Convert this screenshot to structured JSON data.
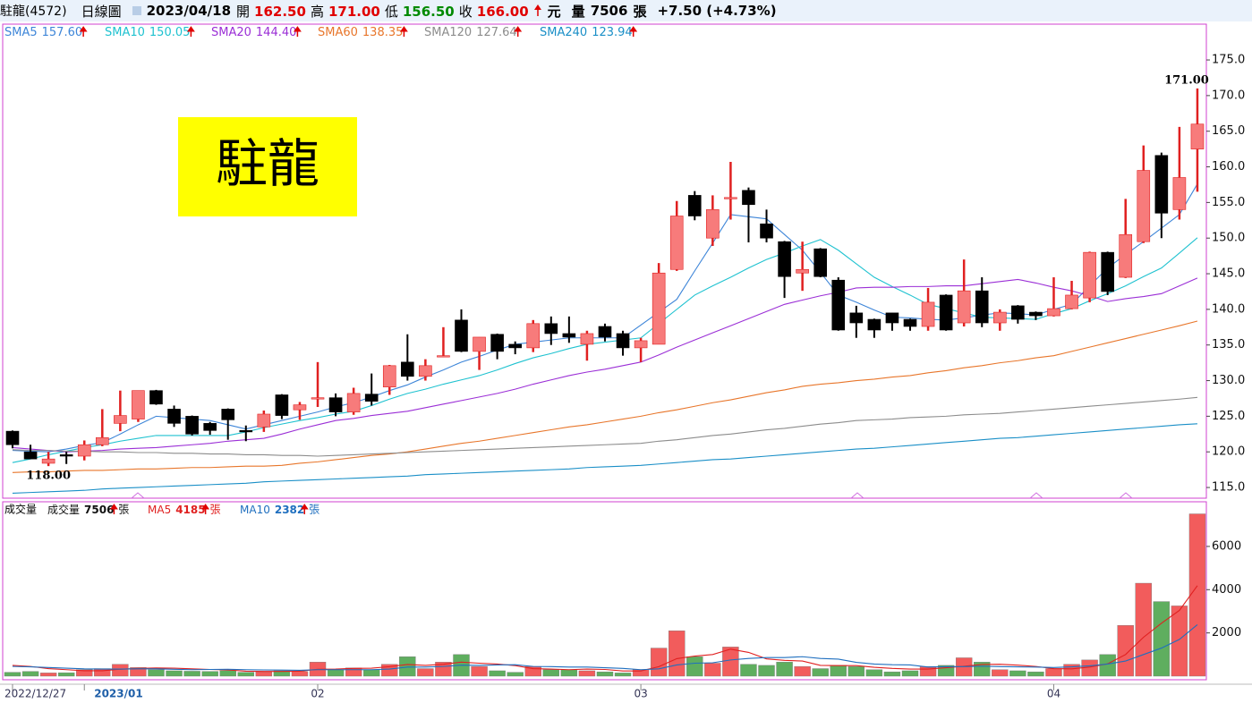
{
  "header": {
    "name": "駐龍(4572)",
    "period": "日線圖",
    "date": "2023/04/18",
    "items": [
      {
        "label": "開",
        "value": "162.50",
        "color": "#e00000"
      },
      {
        "label": "高",
        "value": "171.00",
        "color": "#e00000"
      },
      {
        "label": "低",
        "value": "156.50",
        "color": "#008a00"
      },
      {
        "label": "收",
        "value": "166.00",
        "color": "#e00000"
      }
    ],
    "unit": "元",
    "volume_label": "量",
    "volume": "7506",
    "volume_unit": "張",
    "change": "+7.50 (+4.73%)"
  },
  "chart_data": [
    {
      "type": "candlestick",
      "badge": "駐龍",
      "categories": [
        "2022/12/27",
        null,
        null,
        null,
        "2023/01",
        null,
        null,
        null,
        null,
        null,
        null,
        null,
        null,
        null,
        null,
        null,
        null,
        "02",
        null,
        null,
        null,
        null,
        null,
        null,
        null,
        null,
        null,
        null,
        null,
        null,
        null,
        null,
        null,
        null,
        null,
        "03",
        null,
        null,
        null,
        null,
        null,
        null,
        null,
        null,
        null,
        null,
        null,
        null,
        null,
        null,
        null,
        null,
        null,
        null,
        null,
        null,
        null,
        null,
        "04",
        null,
        null,
        null,
        null,
        null,
        null,
        null,
        null
      ],
      "open": [
        122.9,
        120.0,
        118.4,
        119.6,
        119.4,
        121.0,
        124.0,
        124.6,
        128.6,
        126.0,
        125.0,
        124.0,
        126.0,
        123.0,
        123.5,
        128.0,
        125.9,
        127.5,
        127.6,
        125.6,
        128.1,
        129.1,
        132.6,
        130.6,
        133.4,
        138.5,
        134.1,
        136.5,
        135.1,
        134.6,
        138.0,
        136.6,
        135.1,
        137.6,
        136.6,
        134.6,
        135.1,
        145.6,
        156.0,
        150.0,
        155.6,
        156.7,
        152.0,
        149.5,
        145.1,
        148.5,
        144.1,
        139.5,
        138.6,
        139.5,
        138.6,
        137.6,
        142.0,
        138.1,
        142.6,
        138.1,
        140.5,
        139.6,
        139.1,
        140.1,
        141.6,
        148.0,
        144.5,
        149.5,
        161.6,
        154.0,
        162.5
      ],
      "high": [
        123.0,
        121.0,
        120.0,
        120.0,
        121.6,
        126.0,
        128.6,
        128.6,
        128.7,
        126.5,
        125.1,
        124.2,
        126.1,
        123.7,
        125.8,
        128.1,
        127.0,
        132.6,
        128.2,
        129.0,
        131.0,
        132.2,
        136.5,
        133.0,
        137.5,
        140.0,
        136.1,
        136.6,
        135.5,
        138.5,
        139.0,
        139.0,
        137.0,
        138.0,
        137.0,
        136.0,
        146.5,
        155.2,
        156.6,
        156.0,
        160.7,
        157.1,
        154.0,
        149.6,
        149.5,
        148.6,
        144.5,
        140.5,
        138.7,
        139.5,
        138.7,
        143.0,
        142.1,
        147.0,
        144.5,
        140.0,
        140.6,
        139.7,
        144.5,
        144.0,
        148.1,
        148.1,
        155.5,
        163.0,
        162.0,
        165.6,
        171.0
      ],
      "low": [
        120.5,
        119.0,
        118.0,
        118.3,
        118.8,
        120.8,
        122.9,
        124.2,
        126.6,
        123.5,
        122.3,
        122.4,
        121.7,
        121.5,
        122.8,
        124.6,
        124.5,
        126.3,
        125.0,
        125.2,
        126.5,
        128.0,
        130.0,
        130.0,
        133.3,
        134.0,
        131.5,
        133.0,
        133.7,
        134.0,
        135.0,
        135.3,
        132.8,
        135.5,
        133.5,
        132.6,
        135.1,
        145.4,
        152.5,
        148.9,
        152.6,
        149.4,
        149.4,
        141.6,
        142.6,
        144.5,
        137.0,
        136.0,
        136.0,
        137.0,
        137.0,
        137.0,
        137.0,
        137.6,
        137.5,
        137.0,
        138.0,
        138.5,
        139.0,
        140.0,
        141.0,
        142.0,
        144.4,
        149.3,
        150.0,
        152.6,
        156.5
      ],
      "close": [
        121.0,
        119.0,
        119.0,
        119.4,
        121.0,
        122.0,
        125.1,
        128.6,
        126.7,
        124.0,
        122.5,
        123.0,
        124.5,
        122.8,
        125.3,
        125.1,
        126.6,
        127.6,
        125.6,
        128.2,
        127.1,
        132.1,
        130.6,
        132.1,
        133.5,
        134.1,
        136.1,
        134.1,
        134.6,
        138.0,
        136.6,
        136.1,
        136.6,
        136.1,
        134.6,
        135.6,
        145.1,
        153.1,
        153.1,
        154.0,
        155.7,
        154.7,
        150.0,
        144.6,
        145.6,
        144.6,
        137.1,
        138.1,
        137.1,
        138.1,
        137.6,
        141.0,
        137.1,
        142.6,
        138.1,
        139.6,
        138.6,
        139.1,
        140.1,
        142.0,
        148.0,
        142.5,
        150.5,
        159.5,
        153.5,
        158.5,
        166.0
      ],
      "up_color": "#f77b7b",
      "up_edge": "#e02020",
      "down_color": "#000000",
      "ylim": [
        113.5,
        179.9
      ],
      "yticks": [
        {
          "value": 115,
          "label": "115.0"
        },
        {
          "value": 120,
          "label": "120.0"
        },
        {
          "value": 125,
          "label": "125.0"
        },
        {
          "value": 130,
          "label": "130.0"
        },
        {
          "value": 135,
          "label": "135.0"
        },
        {
          "value": 140,
          "label": "140.0"
        },
        {
          "value": 145,
          "label": "145.0"
        },
        {
          "value": 150,
          "label": "150.0"
        },
        {
          "value": 155,
          "label": "155.0"
        },
        {
          "value": 160,
          "label": "160.0"
        },
        {
          "value": 165,
          "label": "165.0"
        },
        {
          "value": 170,
          "label": "170.0"
        },
        {
          "value": 175,
          "label": "175.0"
        }
      ],
      "annotations": [
        {
          "text": "171.00",
          "index": 66,
          "value": 171.0
        },
        {
          "text": "118.00",
          "index": 2,
          "value": 118.0
        }
      ],
      "lines": [
        {
          "name": "SMA5",
          "current": "157.60",
          "color": "#3d85d8",
          "values": [
            120.2,
            120.1,
            120.0,
            120.4,
            120.9,
            121.3,
            122.5,
            123.8,
            125.0,
            124.8,
            124.6,
            124.4,
            123.8,
            123.2,
            123.8,
            124.4,
            125.0,
            125.6,
            126.3,
            126.9,
            127.7,
            128.6,
            129.4,
            130.5,
            131.5,
            132.6,
            133.4,
            134.3,
            135.1,
            135.4,
            135.7,
            136.0,
            136.0,
            136.0,
            136.0,
            137.8,
            139.6,
            141.4,
            145.4,
            149.3,
            153.3,
            153.0,
            152.7,
            150.5,
            148.3,
            145.2,
            142.0,
            141.0,
            139.9,
            138.9,
            138.8,
            138.6,
            138.5,
            138.8,
            139.2,
            139.5,
            139.4,
            139.2,
            140.0,
            140.7,
            143.3,
            145.8,
            147.7,
            149.5,
            151.4,
            153.3,
            157.6
          ]
        },
        {
          "name": "SMA10",
          "current": "150.05",
          "color": "#1fc2d0",
          "values": [
            118.5,
            119.0,
            119.6,
            120.1,
            120.6,
            121.0,
            121.5,
            121.9,
            122.3,
            122.3,
            122.3,
            122.3,
            122.3,
            122.8,
            123.4,
            123.9,
            124.4,
            124.8,
            125.3,
            125.7,
            126.5,
            127.4,
            128.2,
            128.8,
            129.5,
            130.1,
            130.7,
            131.5,
            132.4,
            133.2,
            133.8,
            134.5,
            135.1,
            135.4,
            135.7,
            136.0,
            138.0,
            140.0,
            142.0,
            143.3,
            144.5,
            145.8,
            147.0,
            147.9,
            148.9,
            149.8,
            148.3,
            146.4,
            144.5,
            143.2,
            142.0,
            140.7,
            140.1,
            139.5,
            138.9,
            138.8,
            138.7,
            138.6,
            139.4,
            140.1,
            141.2,
            142.2,
            143.3,
            144.6,
            145.8,
            147.9,
            150.05
          ]
        },
        {
          "name": "SMA20",
          "current": "144.40",
          "color": "#9b2fd6",
          "values": [
            120.6,
            120.4,
            120.2,
            120.0,
            120.1,
            120.2,
            120.4,
            120.5,
            120.6,
            120.8,
            121.0,
            121.2,
            121.5,
            121.7,
            121.9,
            122.5,
            123.2,
            123.8,
            124.4,
            124.7,
            125.1,
            125.4,
            125.7,
            126.2,
            126.7,
            127.2,
            127.7,
            128.2,
            128.8,
            129.5,
            130.1,
            130.7,
            131.2,
            131.6,
            132.1,
            132.6,
            133.6,
            134.7,
            135.7,
            136.7,
            137.7,
            138.7,
            139.7,
            140.7,
            141.3,
            141.9,
            142.4,
            143.0,
            143.1,
            143.1,
            143.2,
            143.2,
            143.3,
            143.3,
            143.6,
            143.9,
            144.2,
            143.7,
            143.1,
            142.6,
            141.9,
            141.1,
            141.5,
            141.8,
            142.2,
            143.3,
            144.4
          ]
        },
        {
          "name": "SMA60",
          "current": "138.35",
          "color": "#e8762b",
          "values": [
            117.1,
            117.2,
            117.2,
            117.3,
            117.4,
            117.4,
            117.5,
            117.6,
            117.6,
            117.7,
            117.8,
            117.8,
            117.9,
            118.0,
            118.0,
            118.1,
            118.4,
            118.6,
            118.9,
            119.2,
            119.5,
            119.7,
            120.0,
            120.4,
            120.8,
            121.2,
            121.5,
            121.9,
            122.3,
            122.7,
            123.1,
            123.5,
            123.8,
            124.2,
            124.6,
            125.0,
            125.5,
            125.9,
            126.4,
            126.9,
            127.3,
            127.8,
            128.3,
            128.7,
            129.2,
            129.5,
            129.7,
            130.0,
            130.2,
            130.5,
            130.7,
            131.1,
            131.4,
            131.8,
            132.1,
            132.5,
            132.8,
            133.2,
            133.5,
            134.1,
            134.7,
            135.3,
            135.9,
            136.5,
            137.1,
            137.7,
            138.35
          ]
        },
        {
          "name": "SMA120",
          "current": "127.64",
          "color": "#8c8c8c",
          "values": [
            120.3,
            120.2,
            120.2,
            120.1,
            120.1,
            120.0,
            120.0,
            119.9,
            119.9,
            119.8,
            119.8,
            119.7,
            119.7,
            119.6,
            119.6,
            119.5,
            119.5,
            119.4,
            119.5,
            119.6,
            119.7,
            119.8,
            119.9,
            120.0,
            120.1,
            120.2,
            120.3,
            120.4,
            120.5,
            120.6,
            120.7,
            120.8,
            120.9,
            121.0,
            121.1,
            121.2,
            121.5,
            121.7,
            122.0,
            122.3,
            122.5,
            122.8,
            123.1,
            123.3,
            123.6,
            123.9,
            124.1,
            124.4,
            124.5,
            124.6,
            124.8,
            124.9,
            125.0,
            125.2,
            125.3,
            125.4,
            125.6,
            125.8,
            126.0,
            126.2,
            126.4,
            126.6,
            126.8,
            127.0,
            127.2,
            127.4,
            127.64
          ]
        },
        {
          "name": "SMA240",
          "current": "123.94",
          "color": "#1a8fc7",
          "values": [
            114.2,
            114.3,
            114.4,
            114.5,
            114.6,
            114.8,
            114.9,
            115.0,
            115.1,
            115.2,
            115.3,
            115.4,
            115.5,
            115.6,
            115.8,
            115.9,
            116.0,
            116.1,
            116.2,
            116.3,
            116.4,
            116.5,
            116.6,
            116.8,
            116.9,
            117.0,
            117.1,
            117.2,
            117.3,
            117.4,
            117.5,
            117.6,
            117.8,
            117.9,
            118.0,
            118.1,
            118.3,
            118.5,
            118.7,
            118.9,
            119.0,
            119.2,
            119.4,
            119.6,
            119.8,
            120.0,
            120.2,
            120.4,
            120.5,
            120.7,
            120.9,
            121.1,
            121.3,
            121.5,
            121.7,
            121.9,
            122.0,
            122.2,
            122.4,
            122.6,
            122.8,
            123.0,
            123.2,
            123.4,
            123.6,
            123.8,
            123.94
          ]
        }
      ]
    },
    {
      "type": "bar",
      "title": "成交量",
      "unit": "張",
      "up_color": "#f25c5c",
      "down_color": "#5fae5f",
      "series": [
        {
          "name": "成交量",
          "current": "7506",
          "values": [
            180,
            220,
            150,
            160,
            300,
            350,
            550,
            400,
            300,
            250,
            230,
            220,
            260,
            180,
            200,
            250,
            220,
            650,
            300,
            380,
            300,
            550,
            900,
            350,
            650,
            1000,
            450,
            250,
            180,
            450,
            300,
            300,
            250,
            200,
            150,
            300,
            1300,
            2100,
            900,
            600,
            1350,
            550,
            500,
            650,
            450,
            350,
            500,
            450,
            300,
            200,
            250,
            450,
            500,
            850,
            650,
            300,
            250,
            200,
            350,
            550,
            750,
            1000,
            2350,
            4300,
            3450,
            3250,
            7506
          ]
        }
      ],
      "lines": [
        {
          "name": "MA5",
          "current": "4185",
          "color": "#e02020",
          "values": [
            500,
            450,
            350,
            300,
            250,
            250,
            320,
            360,
            380,
            370,
            340,
            310,
            290,
            230,
            220,
            220,
            230,
            320,
            330,
            360,
            370,
            440,
            540,
            500,
            550,
            650,
            600,
            560,
            490,
            350,
            330,
            300,
            330,
            310,
            240,
            240,
            440,
            810,
            930,
            1000,
            1250,
            1100,
            800,
            730,
            700,
            500,
            490,
            490,
            410,
            360,
            330,
            330,
            390,
            460,
            540,
            550,
            510,
            450,
            350,
            340,
            420,
            570,
            1000,
            1800,
            2450,
            3040,
            4185
          ]
        },
        {
          "name": "MA10",
          "current": "2382",
          "color": "#1f6fbf",
          "values": [
            450,
            430,
            400,
            370,
            340,
            330,
            330,
            340,
            340,
            320,
            300,
            310,
            320,
            300,
            290,
            280,
            270,
            300,
            300,
            300,
            300,
            330,
            420,
            420,
            450,
            510,
            500,
            520,
            530,
            450,
            440,
            420,
            420,
            390,
            360,
            300,
            340,
            520,
            600,
            620,
            750,
            820,
            860,
            860,
            900,
            820,
            790,
            640,
            560,
            530,
            520,
            420,
            440,
            440,
            460,
            440,
            430,
            420,
            400,
            430,
            480,
            560,
            700,
            1000,
            1300,
            1700,
            2382
          ]
        }
      ],
      "ylim": [
        0,
        7900
      ],
      "yticks": [
        2000,
        4000,
        6000
      ]
    }
  ]
}
